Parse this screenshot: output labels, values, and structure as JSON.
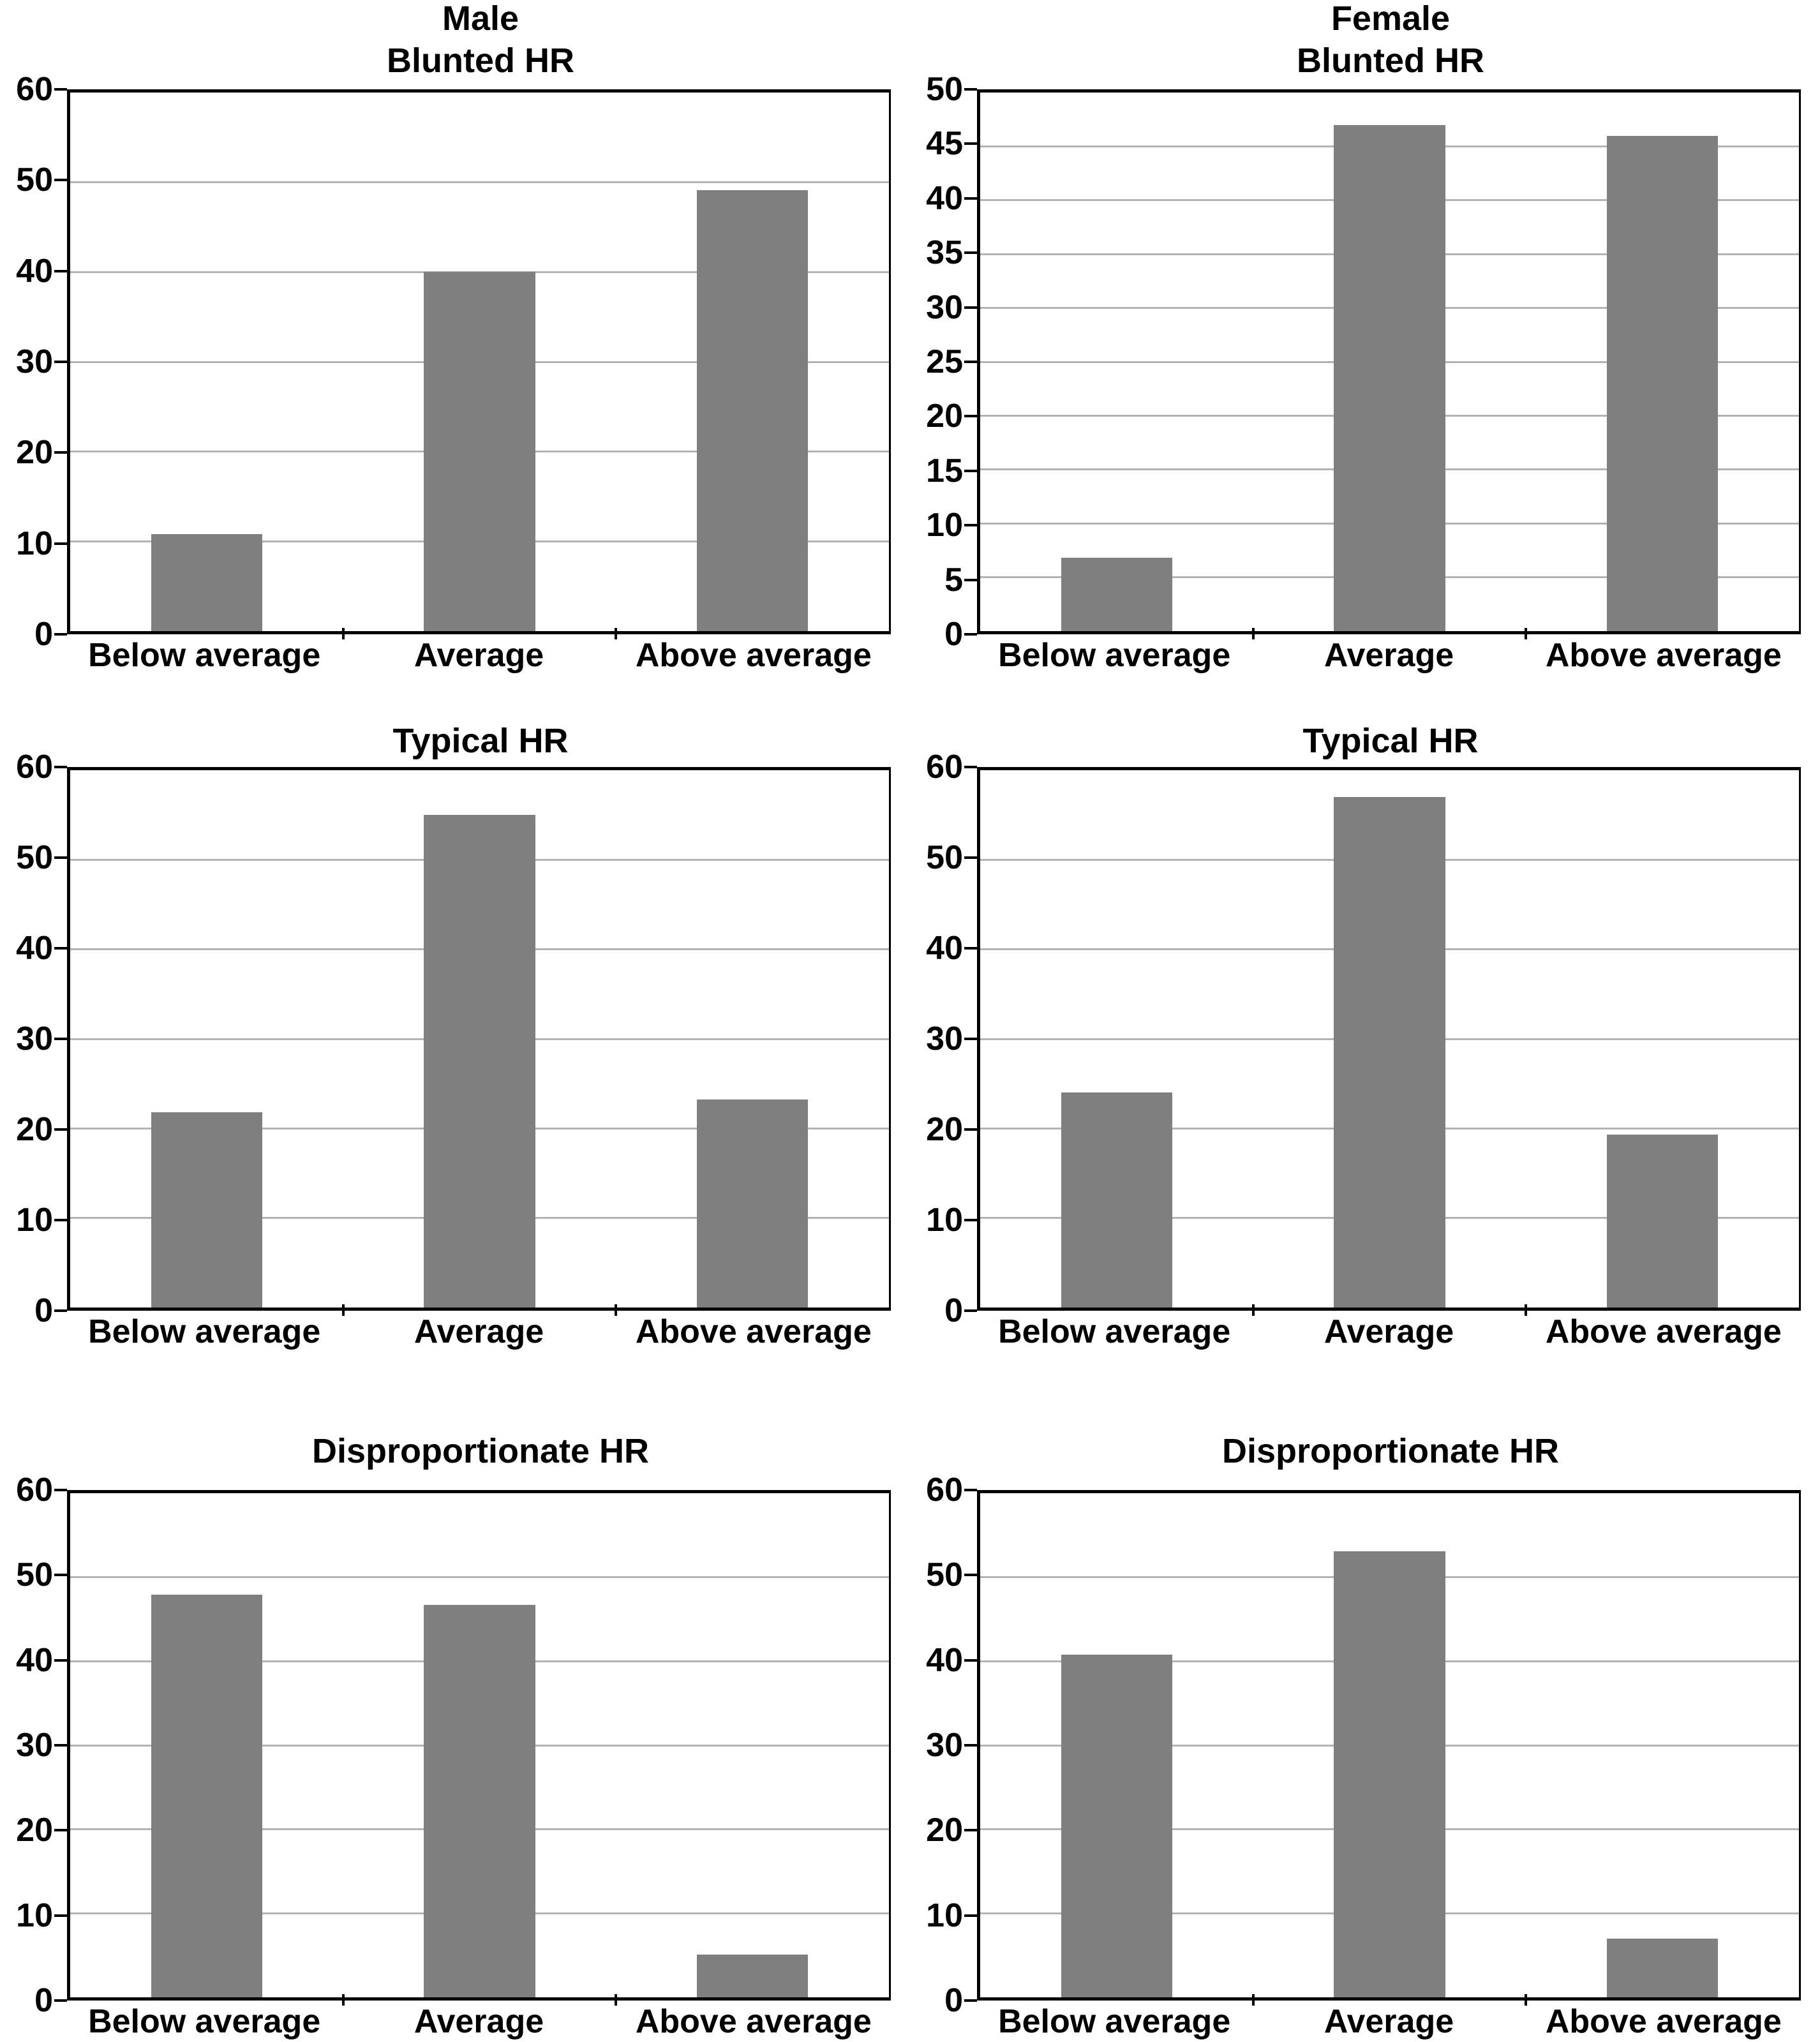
{
  "figure": {
    "column_headers": [
      "Male",
      "Female"
    ],
    "row_headers": [
      "Blunted HR",
      "Typical HR",
      "Disproportionate HR"
    ],
    "colors": {
      "bar": "#7f7f7f",
      "gridline": "#b3b3b3",
      "axis": "#000000",
      "background": "#ffffff"
    }
  },
  "chart_data": [
    {
      "type": "bar",
      "column": "Male",
      "condition": "Blunted HR",
      "title_lines": [
        "Male",
        "Blunted HR"
      ],
      "categories": [
        "Below average",
        "Average",
        "Above average"
      ],
      "values": [
        10.8,
        40,
        49.1
      ],
      "ylim": [
        0,
        60
      ],
      "ytick_step": 10,
      "grid": true,
      "xlabel": "",
      "ylabel": ""
    },
    {
      "type": "bar",
      "column": "Female",
      "condition": "Blunted HR",
      "title_lines": [
        "Female",
        "Blunted HR"
      ],
      "categories": [
        "Below average",
        "Average",
        "Above average"
      ],
      "values": [
        6.8,
        47,
        46
      ],
      "ylim": [
        0,
        50
      ],
      "ytick_step": 5,
      "grid": true,
      "xlabel": "",
      "ylabel": ""
    },
    {
      "type": "bar",
      "column": "Male",
      "condition": "Typical HR",
      "title_lines": [
        "Typical HR"
      ],
      "categories": [
        "Below average",
        "Average",
        "Above average"
      ],
      "values": [
        21.8,
        55,
        23.2
      ],
      "ylim": [
        0,
        60
      ],
      "ytick_step": 10,
      "grid": true,
      "xlabel": "",
      "ylabel": ""
    },
    {
      "type": "bar",
      "column": "Female",
      "condition": "Typical HR",
      "title_lines": [
        "Typical HR"
      ],
      "categories": [
        "Below average",
        "Average",
        "Above average"
      ],
      "values": [
        24,
        57,
        19.3
      ],
      "ylim": [
        0,
        60
      ],
      "ytick_step": 10,
      "grid": true,
      "xlabel": "",
      "ylabel": ""
    },
    {
      "type": "bar",
      "column": "Male",
      "condition": "Disproportionate HR",
      "title_lines": [
        "Disproportionate HR"
      ],
      "categories": [
        "Below average",
        "Average",
        "Above average"
      ],
      "values": [
        47.9,
        46.7,
        5.1
      ],
      "ylim": [
        0,
        60
      ],
      "ytick_step": 10,
      "grid": true,
      "xlabel": "",
      "ylabel": ""
    },
    {
      "type": "bar",
      "column": "Female",
      "condition": "Disproportionate HR",
      "title_lines": [
        "Disproportionate HR"
      ],
      "categories": [
        "Below average",
        "Average",
        "Above average"
      ],
      "values": [
        40.8,
        53.1,
        7
      ],
      "ylim": [
        0,
        60
      ],
      "ytick_step": 10,
      "grid": true,
      "xlabel": "",
      "ylabel": ""
    }
  ]
}
